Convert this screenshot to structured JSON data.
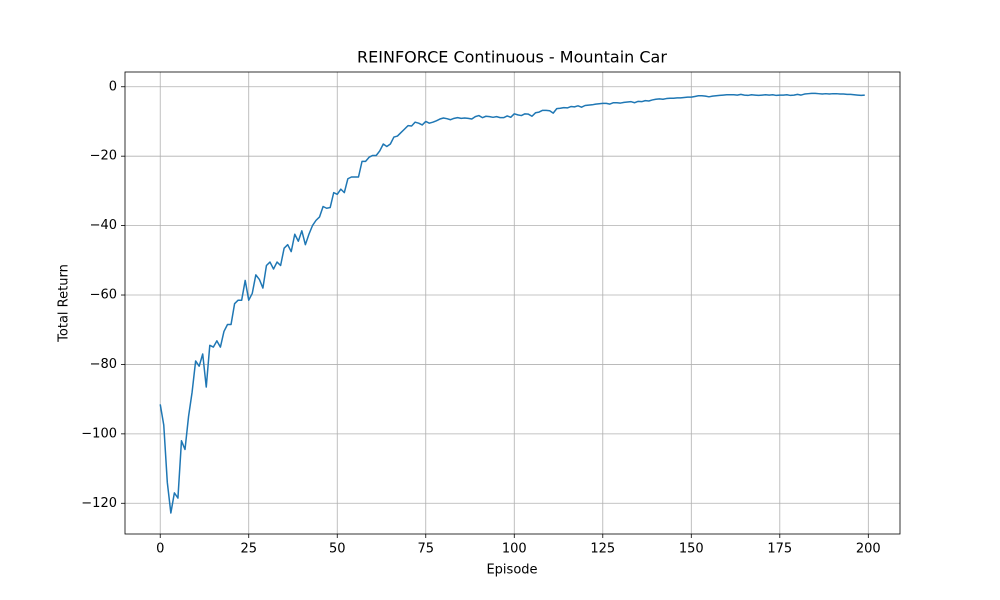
{
  "chart_data": {
    "type": "line",
    "title": "REINFORCE Continuous - Mountain Car",
    "xlabel": "Episode",
    "ylabel": "Total Return",
    "color": "#1f77b4",
    "grid": true,
    "xlim": [
      -9.95,
      208.95
    ],
    "ylim": [
      -128.85,
      4.25
    ],
    "xticks": [
      0,
      25,
      50,
      75,
      100,
      125,
      150,
      175,
      200
    ],
    "yticks": [
      {
        "value": -120,
        "label": "−120"
      },
      {
        "value": -100,
        "label": "−100"
      },
      {
        "value": -80,
        "label": "−80"
      },
      {
        "value": -60,
        "label": "−60"
      },
      {
        "value": -40,
        "label": "−40"
      },
      {
        "value": -20,
        "label": "−20"
      },
      0
    ],
    "x": [
      0,
      1,
      2,
      3,
      4,
      5,
      6,
      7,
      8,
      9,
      10,
      11,
      12,
      13,
      14,
      15,
      16,
      17,
      18,
      19,
      20,
      21,
      22,
      23,
      24,
      25,
      26,
      27,
      28,
      29,
      30,
      31,
      32,
      33,
      34,
      35,
      36,
      37,
      38,
      39,
      40,
      41,
      42,
      43,
      44,
      45,
      46,
      47,
      48,
      49,
      50,
      51,
      52,
      53,
      54,
      55,
      56,
      57,
      58,
      59,
      60,
      61,
      62,
      63,
      64,
      65,
      66,
      67,
      68,
      69,
      70,
      71,
      72,
      73,
      74,
      75,
      76,
      77,
      78,
      79,
      80,
      81,
      82,
      83,
      84,
      85,
      86,
      87,
      88,
      89,
      90,
      91,
      92,
      93,
      94,
      95,
      96,
      97,
      98,
      99,
      100,
      101,
      102,
      103,
      104,
      105,
      106,
      107,
      108,
      109,
      110,
      111,
      112,
      113,
      114,
      115,
      116,
      117,
      118,
      119,
      120,
      121,
      122,
      123,
      124,
      125,
      126,
      127,
      128,
      129,
      130,
      131,
      132,
      133,
      134,
      135,
      136,
      137,
      138,
      139,
      140,
      141,
      142,
      143,
      144,
      145,
      146,
      147,
      148,
      149,
      150,
      151,
      152,
      153,
      154,
      155,
      156,
      157,
      158,
      159,
      160,
      161,
      162,
      163,
      164,
      165,
      166,
      167,
      168,
      169,
      170,
      171,
      172,
      173,
      174,
      175,
      176,
      177,
      178,
      179,
      180,
      181,
      182,
      183,
      184,
      185,
      186,
      187,
      188,
      189,
      190,
      191,
      192,
      193,
      194,
      195,
      196,
      197,
      198,
      199
    ],
    "values": [
      -91.5,
      -97.5,
      -114,
      -122.8,
      -117,
      -118.5,
      -102,
      -104.5,
      -95,
      -88,
      -79,
      -80.5,
      -77,
      -86.5,
      -74.5,
      -75,
      -73.2,
      -75,
      -70.5,
      -68.5,
      -68.5,
      -62.5,
      -61.5,
      -61.5,
      -55.8,
      -61.5,
      -59.5,
      -54.2,
      -55.5,
      -58,
      -51.5,
      -50.5,
      -52.5,
      -50.5,
      -51.5,
      -46.5,
      -45.5,
      -47.5,
      -42.5,
      -44.5,
      -41.5,
      -45.5,
      -42.5,
      -40,
      -38.5,
      -37.5,
      -34.5,
      -35,
      -34.8,
      -30.5,
      -31,
      -29.5,
      -30.5,
      -26.5,
      -26,
      -26,
      -26,
      -21.5,
      -21.5,
      -20.3,
      -19.8,
      -19.8,
      -18.5,
      -16.5,
      -17.2,
      -16.5,
      -14.5,
      -14.2,
      -13.2,
      -12.2,
      -11.2,
      -11.3,
      -10.2,
      -10.5,
      -11,
      -10,
      -10.5,
      -10.2,
      -9.8,
      -9.3,
      -9,
      -9.2,
      -9.5,
      -9.1,
      -8.9,
      -9.1,
      -9,
      -9.1,
      -9.3,
      -8.6,
      -8.3,
      -8.9,
      -8.5,
      -8.6,
      -8.8,
      -8.6,
      -8.9,
      -8.9,
      -8.4,
      -8.8,
      -7.8,
      -8.1,
      -8.3,
      -7.8,
      -7.9,
      -8.5,
      -7.5,
      -7.3,
      -6.8,
      -6.8,
      -6.9,
      -7.6,
      -6.3,
      -6.2,
      -6,
      -6.1,
      -5.7,
      -5.8,
      -5.5,
      -5.9,
      -5.4,
      -5.3,
      -5.2,
      -5,
      -4.9,
      -4.8,
      -4.8,
      -5,
      -4.6,
      -4.6,
      -4.7,
      -4.5,
      -4.4,
      -4.3,
      -4.6,
      -4.2,
      -4.3,
      -4,
      -4.1,
      -3.8,
      -3.6,
      -3.5,
      -3.6,
      -3.4,
      -3.3,
      -3.3,
      -3.2,
      -3.2,
      -3.1,
      -3,
      -3,
      -2.8,
      -2.6,
      -2.6,
      -2.7,
      -2.9,
      -2.7,
      -2.6,
      -2.5,
      -2.4,
      -2.3,
      -2.3,
      -2.3,
      -2.4,
      -2.2,
      -2.4,
      -2.5,
      -2.3,
      -2.4,
      -2.5,
      -2.4,
      -2.3,
      -2.4,
      -2.3,
      -2.5,
      -2.4,
      -2.4,
      -2.3,
      -2.5,
      -2.4,
      -2.2,
      -2.4,
      -2.1,
      -2,
      -1.9,
      -1.9,
      -2,
      -2.1,
      -2,
      -2.1,
      -2,
      -2,
      -2.1,
      -2.1,
      -2.2,
      -2.2,
      -2.3,
      -2.4,
      -2.5,
      -2.4
    ]
  }
}
